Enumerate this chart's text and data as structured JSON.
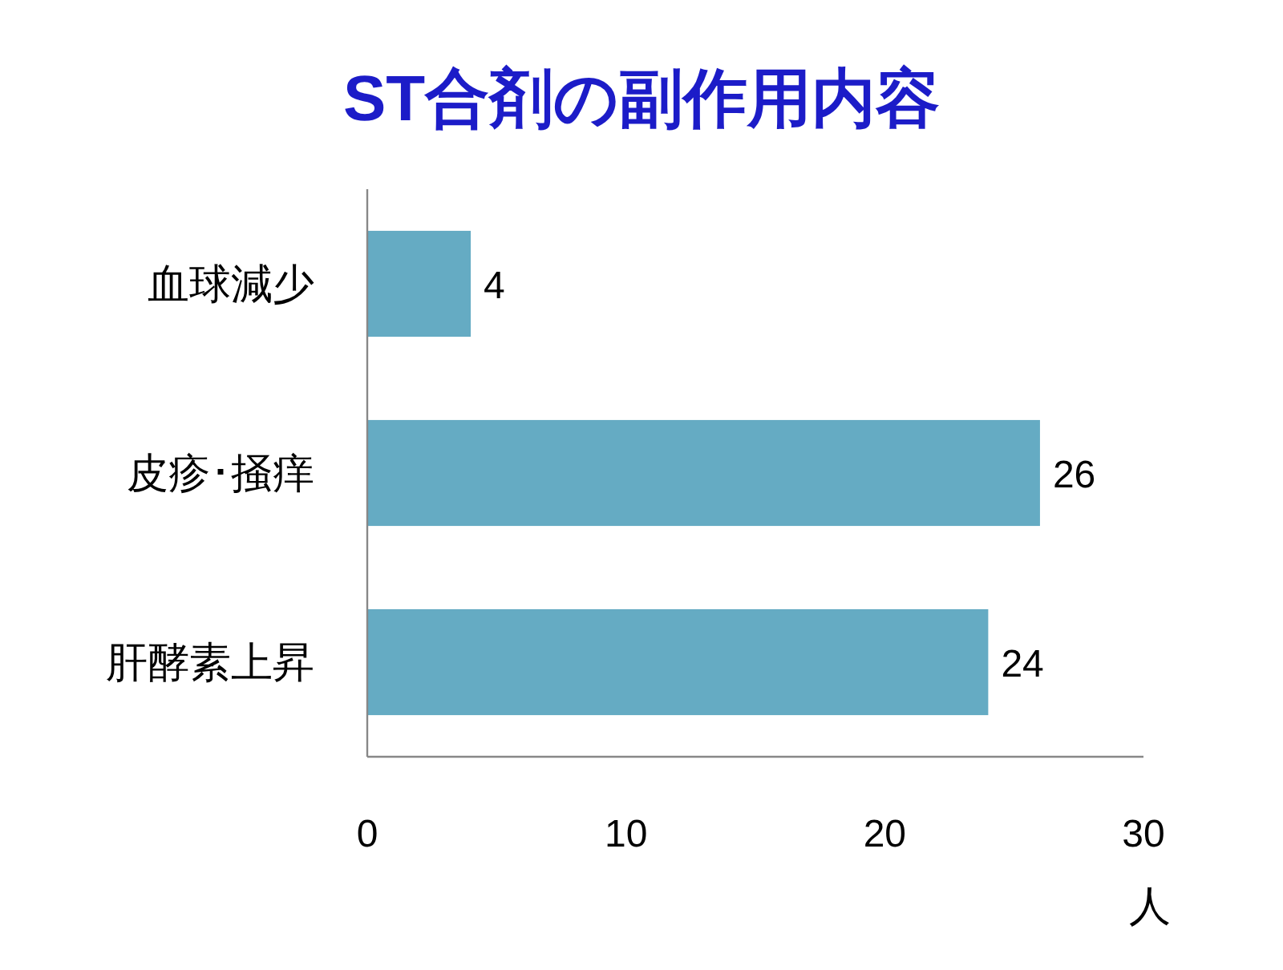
{
  "chart_data": {
    "type": "bar",
    "title": "ST合剤の副作用内容",
    "orientation": "horizontal",
    "categories": [
      "血球減少",
      "皮疹･掻痒",
      "肝酵素上昇"
    ],
    "values": [
      4,
      26,
      24
    ],
    "color": "#65abc3",
    "xlim": [
      0,
      30
    ],
    "xticks": [
      0,
      10,
      20,
      30
    ],
    "xlabel": "人",
    "data_labels": true
  }
}
